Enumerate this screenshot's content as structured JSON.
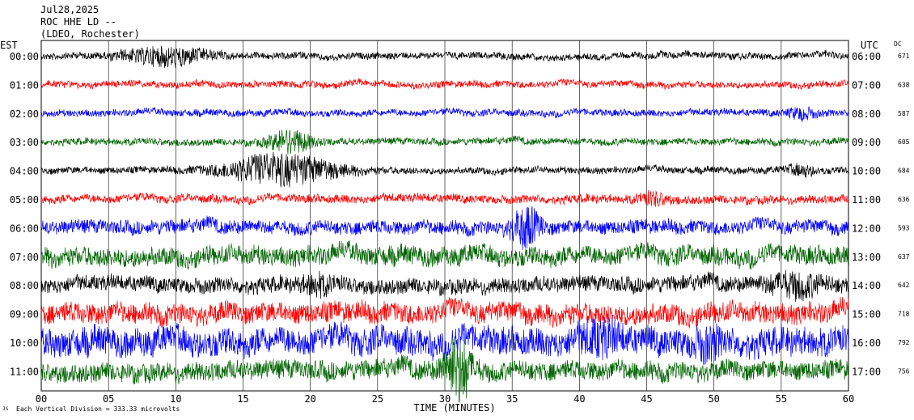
{
  "header": {
    "date": "Jul28,2025",
    "station": "ROC HHE LD --",
    "network": "(LDEO, Rochester)"
  },
  "axes": {
    "left_label": "EST",
    "right_label": "UTC",
    "dc_label": "DC",
    "x_title": "TIME (MINUTES)",
    "footnote_mark": "JS",
    "footnote": "Each Vertical Division =  333.33 microvolts"
  },
  "colors": {
    "black": "#000000",
    "red": "#ff0000",
    "blue": "#0000ff",
    "green": "#006400"
  },
  "chart_data": {
    "type": "line",
    "title": "ROC HHE LD --",
    "xlabel": "TIME (MINUTES)",
    "ylabel": "",
    "xlim": [
      0,
      60
    ],
    "x_ticks": [
      "00",
      "05",
      "10",
      "15",
      "20",
      "25",
      "30",
      "35",
      "40",
      "45",
      "50",
      "55",
      "60"
    ],
    "grid": true,
    "rows": [
      {
        "est": "00:00",
        "utc": "06:00",
        "dc": "671",
        "color": "black",
        "amp": 4,
        "events": [
          [
            9.3,
            10,
            3
          ]
        ]
      },
      {
        "est": "01:00",
        "utc": "07:00",
        "dc": "638",
        "color": "red",
        "amp": 4,
        "events": []
      },
      {
        "est": "02:00",
        "utc": "08:00",
        "dc": "587",
        "color": "blue",
        "amp": 4,
        "events": [
          [
            56.5,
            6,
            1
          ]
        ]
      },
      {
        "est": "03:00",
        "utc": "09:00",
        "dc": "605",
        "color": "green",
        "amp": 4,
        "events": [
          [
            18.5,
            14,
            1.5
          ]
        ]
      },
      {
        "est": "04:00",
        "utc": "10:00",
        "dc": "684",
        "color": "black",
        "amp": 4,
        "events": [
          [
            17.8,
            18,
            4
          ],
          [
            56.5,
            5,
            1
          ]
        ]
      },
      {
        "est": "05:00",
        "utc": "11:00",
        "dc": "636",
        "color": "red",
        "amp": 5,
        "events": [
          [
            45.5,
            6,
            1
          ]
        ]
      },
      {
        "est": "06:00",
        "utc": "12:00",
        "dc": "593",
        "color": "blue",
        "amp": 8,
        "events": [
          [
            36,
            22,
            1
          ]
        ]
      },
      {
        "est": "07:00",
        "utc": "13:00",
        "dc": "637",
        "color": "green",
        "amp": 11,
        "events": []
      },
      {
        "est": "08:00",
        "utc": "14:00",
        "dc": "642",
        "color": "black",
        "amp": 9,
        "events": [
          [
            20.5,
            8,
            1
          ],
          [
            56,
            10,
            2
          ]
        ]
      },
      {
        "est": "09:00",
        "utc": "15:00",
        "dc": "718",
        "color": "red",
        "amp": 12,
        "events": []
      },
      {
        "est": "10:00",
        "utc": "16:00",
        "dc": "792",
        "color": "blue",
        "amp": 16,
        "events": [
          [
            41.5,
            12,
            1.5
          ],
          [
            49.5,
            10,
            1
          ]
        ]
      },
      {
        "est": "11:00",
        "utc": "17:00",
        "dc": "756",
        "color": "green",
        "amp": 11,
        "events": [
          [
            31,
            35,
            1
          ]
        ]
      }
    ]
  }
}
